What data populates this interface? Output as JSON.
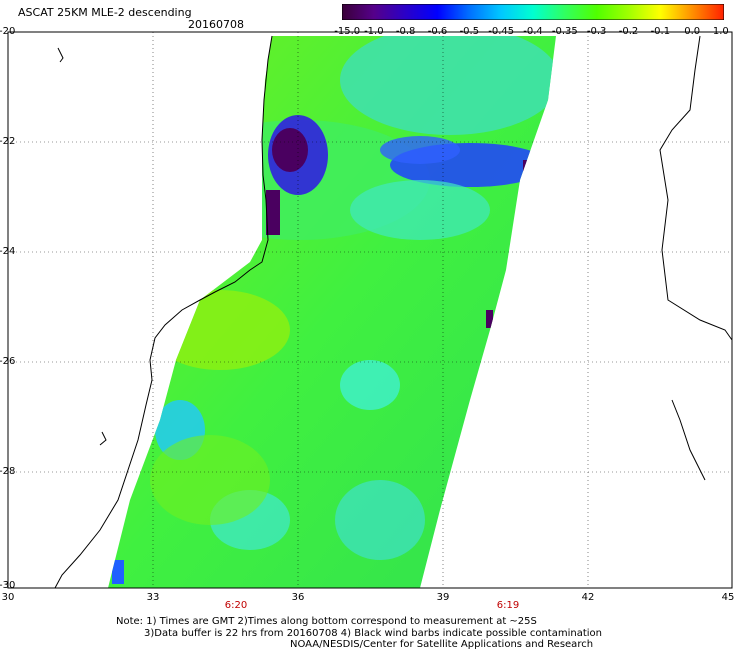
{
  "header": {
    "title": "ASCAT 25KM MLE-2 descending",
    "date": "20160708"
  },
  "colorbar": {
    "labels": [
      "-15.0",
      "-1.0",
      "-0.8",
      "-0.6",
      "-0.5",
      "-0.45",
      "-0.4",
      "-0.35",
      "-0.3",
      "-0.2",
      "-0.1",
      "0.0",
      "1.0"
    ],
    "colors": [
      "#3a0038",
      "#55008a",
      "#2a00c8",
      "#0000ff",
      "#0070ff",
      "#00c8ff",
      "#00ffd0",
      "#30ff60",
      "#50ff00",
      "#a0ff00",
      "#ffff00",
      "#ff9000",
      "#ff2000"
    ]
  },
  "map": {
    "lat_labels": [
      "-20",
      "-22",
      "-24",
      "-26",
      "-28",
      "-30"
    ],
    "lon_labels": [
      "30",
      "33",
      "36",
      "39",
      "42",
      "45"
    ],
    "time_labels": [
      "6:20",
      "6:19"
    ],
    "time_color": "#c00000"
  },
  "notes": {
    "line1": "Note: 1) Times are GMT 2)Times along bottom correspond to measurement at ~25S",
    "line2": "3)Data buffer is 22 hrs from 20160708 4) Black wind barbs indicate possible contamination",
    "line3": "NOAA/NESDIS/Center for Satellite Applications and Research"
  }
}
